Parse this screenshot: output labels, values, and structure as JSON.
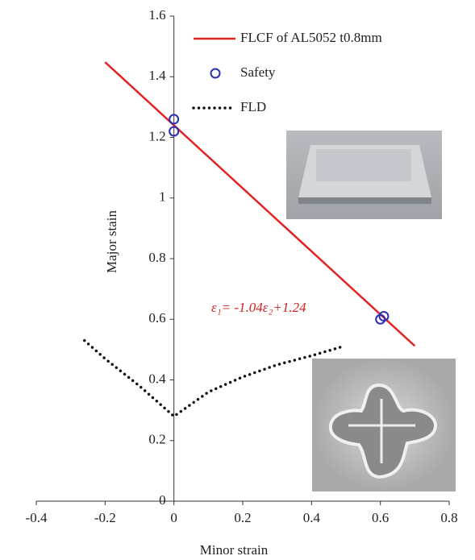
{
  "chart_data": {
    "type": "line",
    "x_label": "Minor strain",
    "y_label": "Major stain",
    "annotation": "ε₁= -1.04ε₂+1.24",
    "xlim": [
      -0.4,
      0.8
    ],
    "xticks": [
      -0.4,
      -0.2,
      0,
      0.2,
      0.4,
      0.6,
      0.8
    ],
    "ylim": [
      0,
      1.6
    ],
    "yticks": [
      0,
      0.2,
      0.4,
      0.6,
      0.8,
      1,
      1.2,
      1.4,
      1.6
    ],
    "legend": "top-right",
    "series": [
      {
        "name": "FLCF of AL5052 t0.8mm",
        "style": "solid",
        "color": "#e02424",
        "x": [
          -0.2,
          0.7
        ],
        "values": [
          1.448,
          0.512
        ]
      },
      {
        "name": "Safety",
        "style": "marker",
        "color": "#2b2fb0",
        "x": [
          0,
          0,
          0.6,
          0.61
        ],
        "values": [
          1.26,
          1.22,
          0.6,
          0.61
        ]
      },
      {
        "name": "FLD",
        "style": "dotted",
        "color": "#111111",
        "x": [
          -0.26,
          -0.2,
          -0.1,
          0,
          0.1,
          0.2,
          0.3,
          0.4,
          0.49
        ],
        "values": [
          0.53,
          0.47,
          0.38,
          0.28,
          0.36,
          0.41,
          0.45,
          0.48,
          0.51
        ]
      }
    ]
  }
}
